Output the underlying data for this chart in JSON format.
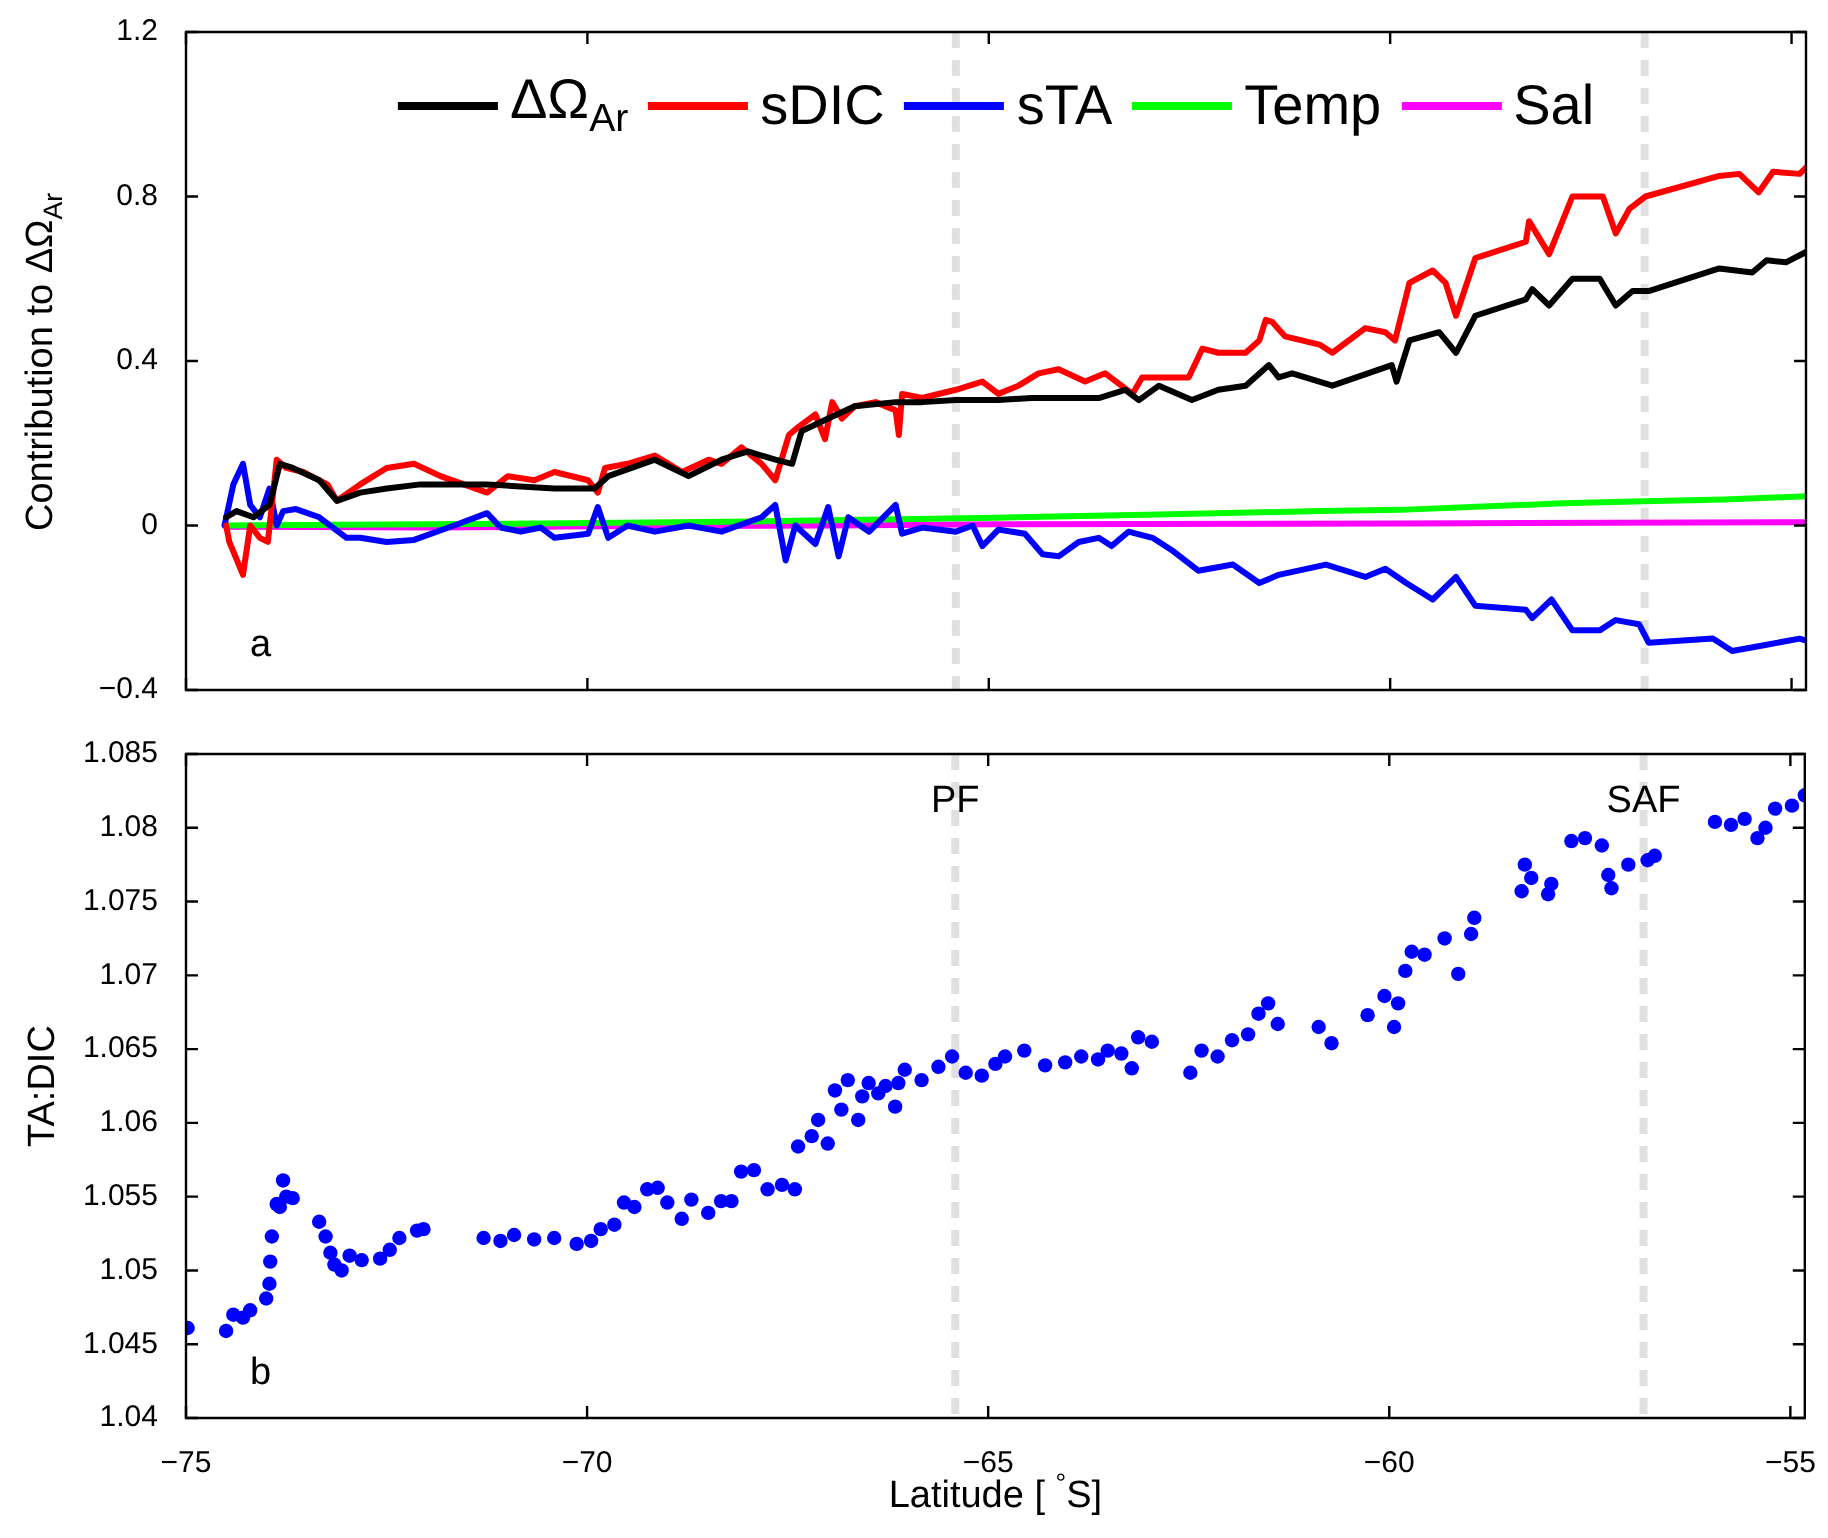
{
  "chart_data": [
    {
      "type": "line",
      "ylabel": "Contribution to ΔΩ$_{Ar}$",
      "xlim": [
        -75,
        -54.82
      ],
      "xticks": [
        {
          "value": -75,
          "label": null
        },
        {
          "value": -70,
          "label": null
        },
        {
          "value": -65,
          "label": null
        },
        {
          "value": -60,
          "label": null
        },
        {
          "value": -55,
          "label": null
        }
      ],
      "ylim": [
        -0.4,
        1.2
      ],
      "yticks": [
        {
          "value": -0.4,
          "label": "−0.4"
        },
        0,
        0.4,
        0.8,
        1.2
      ],
      "tick_labels": "y",
      "legend": "top",
      "line_style": "solid",
      "annotations": [
        "a"
      ],
      "ref_lines": [
        {
          "axis": "x",
          "value": -65.41,
          "color": "#e0e0e0",
          "line_style": "dashed"
        },
        {
          "axis": "x",
          "value": -56.83,
          "color": "#e0e0e0",
          "line_style": "dashed"
        }
      ],
      "series": [
        {
          "name": "ΔΩ$_{Ar}$",
          "color": "#000000",
          "x": [
            -74.5,
            -74.37,
            -74.16,
            -73.96,
            -73.83,
            -73.67,
            -73.34,
            -73.12,
            -72.83,
            -72.5,
            -72.08,
            -71.25,
            -70.41,
            -69.91,
            -69.74,
            -69.16,
            -68.74,
            -68.33,
            -68.0,
            -67.66,
            -67.45,
            -67.33,
            -67.0,
            -66.67,
            -66.16,
            -65.83,
            -65.41,
            -64.88,
            -64.47,
            -64.04,
            -63.63,
            -63.3,
            -63.13,
            -62.88,
            -62.47,
            -62.14,
            -61.8,
            -61.51,
            -61.39,
            -61.22,
            -60.72,
            -59.98,
            -59.92,
            -59.76,
            -59.39,
            -59.18,
            -58.94,
            -58.31,
            -58.23,
            -58.02,
            -57.73,
            -57.39,
            -57.19,
            -56.98,
            -56.78,
            -55.9,
            -55.49,
            -55.31,
            -55.07,
            -54.82
          ],
          "values": [
            0.02,
            0.035,
            0.02,
            0.05,
            0.15,
            0.14,
            0.11,
            0.06,
            0.08,
            0.09,
            0.1,
            0.1,
            0.09,
            0.09,
            0.12,
            0.16,
            0.12,
            0.16,
            0.18,
            0.16,
            0.15,
            0.23,
            0.26,
            0.29,
            0.3,
            0.3,
            0.305,
            0.305,
            0.31,
            0.31,
            0.31,
            0.33,
            0.305,
            0.34,
            0.305,
            0.33,
            0.34,
            0.39,
            0.36,
            0.37,
            0.34,
            0.39,
            0.35,
            0.45,
            0.47,
            0.42,
            0.51,
            0.55,
            0.575,
            0.535,
            0.6,
            0.6,
            0.535,
            0.57,
            0.57,
            0.625,
            0.615,
            0.645,
            0.64,
            0.665
          ]
        },
        {
          "name": "sDIC",
          "color": "#ff0000",
          "x": [
            -74.5,
            -74.46,
            -74.29,
            -74.2,
            -74.08,
            -73.98,
            -73.87,
            -73.75,
            -73.54,
            -73.24,
            -73.12,
            -72.83,
            -72.5,
            -72.16,
            -71.83,
            -71.25,
            -70.99,
            -70.66,
            -70.41,
            -69.99,
            -69.87,
            -69.78,
            -69.5,
            -69.16,
            -68.82,
            -68.49,
            -68.33,
            -68.08,
            -67.83,
            -67.66,
            -67.49,
            -67.37,
            -67.16,
            -67.04,
            -66.95,
            -66.83,
            -66.67,
            -66.41,
            -66.16,
            -66.12,
            -66.08,
            -65.83,
            -65.41,
            -65.08,
            -64.88,
            -64.63,
            -64.38,
            -64.13,
            -63.8,
            -63.55,
            -63.21,
            -63.09,
            -62.51,
            -62.34,
            -62.14,
            -61.8,
            -61.63,
            -61.55,
            -61.47,
            -61.31,
            -60.88,
            -60.72,
            -60.31,
            -60.06,
            -59.94,
            -59.76,
            -59.47,
            -59.31,
            -59.18,
            -58.94,
            -58.31,
            -58.27,
            -58.02,
            -57.73,
            -57.35,
            -57.19,
            -57.02,
            -56.82,
            -55.9,
            -55.65,
            -55.41,
            -55.23,
            -54.9,
            -54.82
          ],
          "values": [
            0,
            -0.04,
            -0.12,
            0,
            -0.03,
            -0.04,
            0.16,
            0.14,
            0.13,
            0.1,
            0.06,
            0.1,
            0.14,
            0.15,
            0.12,
            0.08,
            0.12,
            0.11,
            0.13,
            0.11,
            0.08,
            0.14,
            0.15,
            0.17,
            0.13,
            0.16,
            0.15,
            0.19,
            0.15,
            0.11,
            0.22,
            0.24,
            0.27,
            0.21,
            0.3,
            0.26,
            0.29,
            0.3,
            0.28,
            0.22,
            0.32,
            0.31,
            0.33,
            0.35,
            0.32,
            0.34,
            0.37,
            0.38,
            0.35,
            0.37,
            0.32,
            0.36,
            0.36,
            0.43,
            0.42,
            0.42,
            0.45,
            0.5,
            0.495,
            0.46,
            0.44,
            0.42,
            0.48,
            0.47,
            0.45,
            0.59,
            0.62,
            0.59,
            0.51,
            0.65,
            0.69,
            0.74,
            0.66,
            0.8,
            0.8,
            0.71,
            0.77,
            0.8,
            0.85,
            0.855,
            0.81,
            0.86,
            0.855,
            0.87
          ]
        },
        {
          "name": "sTA",
          "color": "#0000ff",
          "x": [
            -74.52,
            -74.41,
            -74.29,
            -74.2,
            -74.08,
            -73.96,
            -73.87,
            -73.79,
            -73.63,
            -73.34,
            -73.0,
            -72.83,
            -72.5,
            -72.16,
            -71.66,
            -71.25,
            -71.08,
            -70.83,
            -70.58,
            -70.41,
            -69.99,
            -69.87,
            -69.74,
            -69.5,
            -69.16,
            -68.74,
            -68.33,
            -67.83,
            -67.66,
            -67.53,
            -67.41,
            -67.16,
            -67.0,
            -66.87,
            -66.75,
            -66.49,
            -66.16,
            -66.08,
            -65.83,
            -65.41,
            -65.2,
            -65.08,
            -64.88,
            -64.55,
            -64.33,
            -64.13,
            -63.88,
            -63.63,
            -63.47,
            -63.26,
            -62.96,
            -62.72,
            -62.39,
            -61.96,
            -61.63,
            -61.39,
            -60.8,
            -60.31,
            -60.06,
            -59.8,
            -59.47,
            -59.18,
            -58.94,
            -58.31,
            -58.23,
            -57.99,
            -57.73,
            -57.39,
            -57.19,
            -56.9,
            -56.78,
            -55.98,
            -55.74,
            -55.31,
            -54.9,
            -54.82
          ],
          "values": [
            0,
            0.1,
            0.15,
            0.05,
            0.02,
            0.09,
            0,
            0.035,
            0.04,
            0.02,
            -0.03,
            -0.03,
            -0.04,
            -0.035,
            0,
            0.03,
            -0.005,
            -0.015,
            -0.005,
            -0.03,
            -0.02,
            0.045,
            -0.03,
            0,
            -0.015,
            0,
            -0.015,
            0.02,
            0.05,
            -0.085,
            0,
            -0.045,
            0.045,
            -0.075,
            0.02,
            -0.015,
            0.05,
            -0.02,
            -0.005,
            -0.015,
            0,
            -0.05,
            -0.01,
            -0.02,
            -0.07,
            -0.075,
            -0.04,
            -0.03,
            -0.05,
            -0.015,
            -0.03,
            -0.06,
            -0.11,
            -0.095,
            -0.14,
            -0.12,
            -0.095,
            -0.125,
            -0.105,
            -0.14,
            -0.18,
            -0.125,
            -0.195,
            -0.205,
            -0.225,
            -0.18,
            -0.255,
            -0.255,
            -0.23,
            -0.24,
            -0.285,
            -0.275,
            -0.305,
            -0.29,
            -0.275,
            -0.28
          ]
        },
        {
          "name": "Temp",
          "color": "#00ff00",
          "x": [
            -74.5,
            -71.97,
            -69.95,
            -67.93,
            -65.92,
            -64.91,
            -62.89,
            -60.87,
            -59.87,
            -58.85,
            -57.85,
            -56.84,
            -55.83,
            -54.82
          ],
          "values": [
            0,
            0.003,
            0.006,
            0.01,
            0.016,
            0.019,
            0.027,
            0.035,
            0.038,
            0.046,
            0.054,
            0.059,
            0.063,
            0.071
          ]
        },
        {
          "name": "Sal",
          "color": "#ff00ff",
          "x": [
            -74.5,
            -71.97,
            -69.95,
            -66.93,
            -64.91,
            -59.87,
            -54.82
          ],
          "values": [
            -0.003,
            -0.005,
            -0.002,
            0,
            0.003,
            0.005,
            0.008
          ]
        }
      ]
    },
    {
      "type": "scatter",
      "ylabel": "TA:DIC",
      "xlabel": "Latitude [ $^{°}$S]",
      "xlim": [
        -75,
        -54.82
      ],
      "xticks": [
        {
          "value": -75,
          "label": "−75"
        },
        {
          "value": -70,
          "label": "−70"
        },
        {
          "value": -65,
          "label": "−65"
        },
        {
          "value": -60,
          "label": "−60"
        },
        {
          "value": -55,
          "label": "−55"
        }
      ],
      "ylim": [
        1.04,
        1.085
      ],
      "yticks": [
        1.04,
        1.045,
        1.05,
        1.055,
        1.06,
        1.065,
        1.07,
        1.075,
        1.08,
        1.085
      ],
      "marker": "circle",
      "annotations": [
        "b"
      ],
      "ref_lines": [
        {
          "axis": "x",
          "value": -65.41,
          "label": "PF",
          "color": "#e0e0e0",
          "line_style": "dashed"
        },
        {
          "axis": "x",
          "value": -56.83,
          "label": "SAF",
          "color": "#e0e0e0",
          "line_style": "dashed"
        }
      ],
      "series": [
        {
          "color": "#0000ff",
          "x": [
            -74.98,
            -74.5,
            -74.41,
            -74.29,
            -74.2,
            -74.0,
            -73.96,
            -73.95,
            -73.93,
            -73.87,
            -73.79,
            -73.75,
            -73.67,
            -73.83,
            -73.34,
            -73.26,
            -73.2,
            -73.15,
            -73.06,
            -72.96,
            -72.81,
            -72.58,
            -72.46,
            -72.34,
            -72.12,
            -72.04,
            -71.29,
            -71.08,
            -70.91,
            -70.66,
            -70.41,
            -70.13,
            -69.95,
            -69.83,
            -69.66,
            -69.54,
            -69.41,
            -69.25,
            -69.12,
            -69.0,
            -68.82,
            -68.7,
            -68.49,
            -68.33,
            -68.2,
            -68.08,
            -67.92,
            -67.75,
            -67.57,
            -67.41,
            -67.37,
            -67.2,
            -67.12,
            -67.0,
            -66.91,
            -66.83,
            -66.75,
            -66.62,
            -66.57,
            -66.49,
            -66.37,
            -66.28,
            -66.16,
            -66.12,
            -66.04,
            -65.83,
            -65.62,
            -65.45,
            -65.28,
            -65.08,
            -64.91,
            -64.79,
            -64.55,
            -64.29,
            -64.04,
            -63.84,
            -63.63,
            -63.51,
            -63.34,
            -63.21,
            -63.13,
            -62.96,
            -62.48,
            -62.34,
            -62.14,
            -61.96,
            -61.76,
            -61.63,
            -61.51,
            -61.39,
            -60.88,
            -60.72,
            -60.27,
            -60.06,
            -59.94,
            -59.89,
            -59.8,
            -59.72,
            -59.56,
            -59.31,
            -59.14,
            -58.98,
            -58.94,
            -58.35,
            -58.31,
            -58.23,
            -58.02,
            -57.98,
            -57.73,
            -57.56,
            -57.35,
            -57.23,
            -57.27,
            -57.02,
            -56.78,
            -56.69,
            -55.94,
            -55.74,
            -55.57,
            -55.41,
            -55.31,
            -55.19,
            -54.98,
            -54.82
          ],
          "values": [
            1.0461,
            1.0459,
            1.047,
            1.0468,
            1.0473,
            1.0481,
            1.0491,
            1.0506,
            1.0523,
            1.0545,
            1.0561,
            1.055,
            1.0549,
            1.0543,
            1.0533,
            1.0523,
            1.0512,
            1.0504,
            1.05,
            1.051,
            1.0507,
            1.0508,
            1.0514,
            1.0522,
            1.0527,
            1.0528,
            1.0522,
            1.052,
            1.0524,
            1.0521,
            1.0522,
            1.0518,
            1.052,
            1.0528,
            1.0531,
            1.0546,
            1.0543,
            1.0555,
            1.0556,
            1.0546,
            1.0535,
            1.0548,
            1.0539,
            1.0547,
            1.0547,
            1.0567,
            1.0568,
            1.0555,
            1.0558,
            1.0555,
            1.0584,
            1.0591,
            1.0602,
            1.0586,
            1.0622,
            1.0609,
            1.0629,
            1.0602,
            1.0618,
            1.0627,
            1.062,
            1.0625,
            1.0611,
            1.0627,
            1.0636,
            1.0629,
            1.0638,
            1.0645,
            1.0634,
            1.0632,
            1.064,
            1.0645,
            1.0649,
            1.0639,
            1.0641,
            1.0645,
            1.0643,
            1.0649,
            1.0647,
            1.0637,
            1.0658,
            1.0655,
            1.0634,
            1.0649,
            1.0645,
            1.0656,
            1.066,
            1.0674,
            1.0681,
            1.0667,
            1.0665,
            1.0654,
            1.0673,
            1.0686,
            1.0665,
            1.0681,
            1.0703,
            1.0716,
            1.0714,
            1.0725,
            1.0701,
            1.0728,
            1.0739,
            1.0757,
            1.0775,
            1.0766,
            1.0755,
            1.0762,
            1.0791,
            1.0793,
            1.0788,
            1.0759,
            1.0768,
            1.0775,
            1.0778,
            1.0781,
            1.0804,
            1.0802,
            1.0806,
            1.0793,
            1.08,
            1.0813,
            1.0815,
            1.0822
          ]
        }
      ]
    }
  ]
}
